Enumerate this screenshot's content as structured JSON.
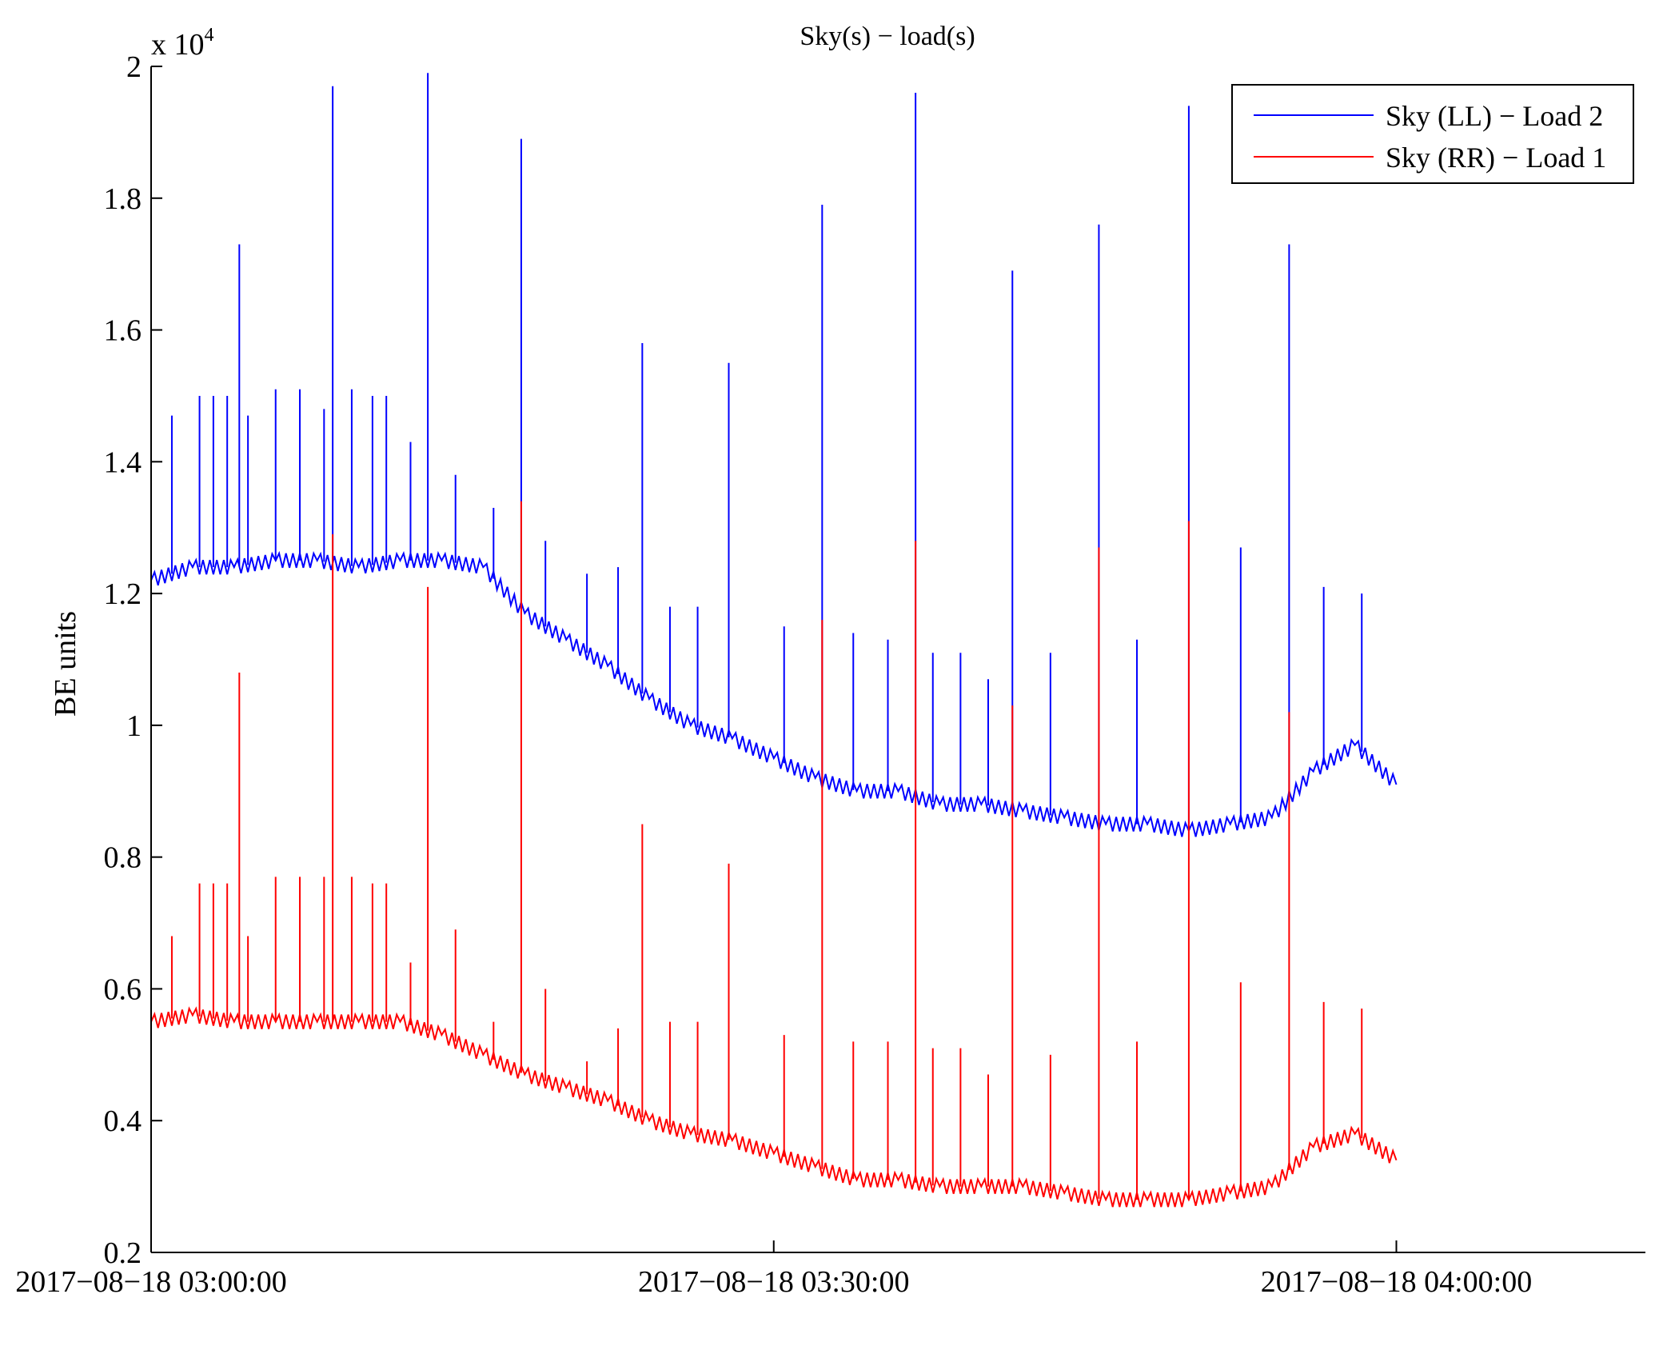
{
  "chart_data": {
    "type": "line",
    "title": "Sky(s) − load(s)",
    "xlabel": "",
    "ylabel": "BE units",
    "y_exponent_label": {
      "base": "x 10",
      "power": "4"
    },
    "ylim": [
      0.2,
      2.0
    ],
    "yticks": [
      0.2,
      0.4,
      0.6,
      0.8,
      1,
      1.2,
      1.4,
      1.6,
      1.8,
      2
    ],
    "ytick_labels": [
      "0.2",
      "0.4",
      "0.6",
      "0.8",
      "1",
      "1.2",
      "1.4",
      "1.6",
      "1.8",
      "2"
    ],
    "xlim": [
      "2017-08-18 03:00:00",
      "2017-08-18 04:12:00"
    ],
    "xticks": [
      "2017-08-18 03:00:00",
      "2017-08-18 03:30:00",
      "2017-08-18 04:00:00"
    ],
    "xtick_labels": [
      "2017−08−18 03:00:00",
      "2017−08−18 03:30:00",
      "2017−08−18 04:00:00"
    ],
    "grid": false,
    "legend_position": "top-right",
    "series": [
      {
        "name": "Sky (LL) − Load 2",
        "color": "#0000ff",
        "x": [
          "2017-08-18 03:00:00",
          "2017-08-18 03:02:00",
          "2017-08-18 03:04:00",
          "2017-08-18 03:06:00",
          "2017-08-18 03:08:00",
          "2017-08-18 03:10:00",
          "2017-08-18 03:12:00",
          "2017-08-18 03:14:00",
          "2017-08-18 03:16:00",
          "2017-08-18 03:18:00",
          "2017-08-18 03:20:00",
          "2017-08-18 03:22:00",
          "2017-08-18 03:24:00",
          "2017-08-18 03:26:00",
          "2017-08-18 03:28:00",
          "2017-08-18 03:30:00",
          "2017-08-18 03:32:00",
          "2017-08-18 03:34:00",
          "2017-08-18 03:36:00",
          "2017-08-18 03:38:00",
          "2017-08-18 03:40:00",
          "2017-08-18 03:42:00",
          "2017-08-18 03:44:00",
          "2017-08-18 03:46:00",
          "2017-08-18 03:48:00",
          "2017-08-18 03:50:00",
          "2017-08-18 03:52:00",
          "2017-08-18 03:54:00",
          "2017-08-18 03:56:00",
          "2017-08-18 03:58:00",
          "2017-08-18 04:00:00"
        ],
        "y": [
          1.22,
          1.24,
          1.24,
          1.25,
          1.25,
          1.24,
          1.25,
          1.25,
          1.24,
          1.17,
          1.13,
          1.09,
          1.04,
          1.0,
          0.98,
          0.95,
          0.92,
          0.9,
          0.9,
          0.88,
          0.88,
          0.87,
          0.86,
          0.85,
          0.85,
          0.84,
          0.85,
          0.86,
          0.93,
          0.97,
          0.91
        ],
        "spikes": [
          {
            "x": "2017-08-18 03:01:00",
            "y": 1.47
          },
          {
            "x": "2017-08-18 03:02:20",
            "y": 1.5
          },
          {
            "x": "2017-08-18 03:03:00",
            "y": 1.5
          },
          {
            "x": "2017-08-18 03:03:40",
            "y": 1.5
          },
          {
            "x": "2017-08-18 03:04:15",
            "y": 1.73
          },
          {
            "x": "2017-08-18 03:04:40",
            "y": 1.47
          },
          {
            "x": "2017-08-18 03:06:00",
            "y": 1.51
          },
          {
            "x": "2017-08-18 03:07:10",
            "y": 1.51
          },
          {
            "x": "2017-08-18 03:08:20",
            "y": 1.48
          },
          {
            "x": "2017-08-18 03:08:45",
            "y": 1.97
          },
          {
            "x": "2017-08-18 03:09:40",
            "y": 1.51
          },
          {
            "x": "2017-08-18 03:10:40",
            "y": 1.5
          },
          {
            "x": "2017-08-18 03:11:20",
            "y": 1.5
          },
          {
            "x": "2017-08-18 03:12:30",
            "y": 1.43
          },
          {
            "x": "2017-08-18 03:13:20",
            "y": 1.99
          },
          {
            "x": "2017-08-18 03:14:40",
            "y": 1.38
          },
          {
            "x": "2017-08-18 03:16:30",
            "y": 1.33
          },
          {
            "x": "2017-08-18 03:17:50",
            "y": 1.89
          },
          {
            "x": "2017-08-18 03:19:00",
            "y": 1.28
          },
          {
            "x": "2017-08-18 03:21:00",
            "y": 1.23
          },
          {
            "x": "2017-08-18 03:22:30",
            "y": 1.24
          },
          {
            "x": "2017-08-18 03:23:40",
            "y": 1.58
          },
          {
            "x": "2017-08-18 03:25:00",
            "y": 1.18
          },
          {
            "x": "2017-08-18 03:26:20",
            "y": 1.18
          },
          {
            "x": "2017-08-18 03:27:50",
            "y": 1.55
          },
          {
            "x": "2017-08-18 03:30:30",
            "y": 1.15
          },
          {
            "x": "2017-08-18 03:32:20",
            "y": 1.79
          },
          {
            "x": "2017-08-18 03:33:50",
            "y": 1.14
          },
          {
            "x": "2017-08-18 03:35:30",
            "y": 1.13
          },
          {
            "x": "2017-08-18 03:36:50",
            "y": 1.96
          },
          {
            "x": "2017-08-18 03:37:40",
            "y": 1.11
          },
          {
            "x": "2017-08-18 03:39:00",
            "y": 1.11
          },
          {
            "x": "2017-08-18 03:40:20",
            "y": 1.07
          },
          {
            "x": "2017-08-18 03:41:30",
            "y": 1.69
          },
          {
            "x": "2017-08-18 03:43:20",
            "y": 1.11
          },
          {
            "x": "2017-08-18 03:45:40",
            "y": 1.76
          },
          {
            "x": "2017-08-18 03:47:30",
            "y": 1.13
          },
          {
            "x": "2017-08-18 03:50:00",
            "y": 1.94
          },
          {
            "x": "2017-08-18 03:52:30",
            "y": 1.27
          },
          {
            "x": "2017-08-18 03:54:50",
            "y": 1.73
          },
          {
            "x": "2017-08-18 03:56:30",
            "y": 1.21
          },
          {
            "x": "2017-08-18 03:58:20",
            "y": 1.2
          }
        ]
      },
      {
        "name": "Sky (RR) − Load 1",
        "color": "#ff0000",
        "x": [
          "2017-08-18 03:00:00",
          "2017-08-18 03:02:00",
          "2017-08-18 03:04:00",
          "2017-08-18 03:06:00",
          "2017-08-18 03:08:00",
          "2017-08-18 03:10:00",
          "2017-08-18 03:12:00",
          "2017-08-18 03:14:00",
          "2017-08-18 03:16:00",
          "2017-08-18 03:18:00",
          "2017-08-18 03:20:00",
          "2017-08-18 03:22:00",
          "2017-08-18 03:24:00",
          "2017-08-18 03:26:00",
          "2017-08-18 03:28:00",
          "2017-08-18 03:30:00",
          "2017-08-18 03:32:00",
          "2017-08-18 03:34:00",
          "2017-08-18 03:36:00",
          "2017-08-18 03:38:00",
          "2017-08-18 03:40:00",
          "2017-08-18 03:42:00",
          "2017-08-18 03:44:00",
          "2017-08-18 03:46:00",
          "2017-08-18 03:48:00",
          "2017-08-18 03:50:00",
          "2017-08-18 03:52:00",
          "2017-08-18 03:54:00",
          "2017-08-18 03:56:00",
          "2017-08-18 03:58:00",
          "2017-08-18 04:00:00"
        ],
        "y": [
          0.55,
          0.56,
          0.55,
          0.55,
          0.55,
          0.55,
          0.55,
          0.53,
          0.5,
          0.47,
          0.45,
          0.43,
          0.4,
          0.38,
          0.37,
          0.35,
          0.33,
          0.31,
          0.31,
          0.3,
          0.3,
          0.3,
          0.29,
          0.28,
          0.28,
          0.28,
          0.29,
          0.3,
          0.36,
          0.38,
          0.34
        ],
        "spikes": [
          {
            "x": "2017-08-18 03:01:00",
            "y": 0.68
          },
          {
            "x": "2017-08-18 03:02:20",
            "y": 0.76
          },
          {
            "x": "2017-08-18 03:03:00",
            "y": 0.76
          },
          {
            "x": "2017-08-18 03:03:40",
            "y": 0.76
          },
          {
            "x": "2017-08-18 03:04:15",
            "y": 1.08
          },
          {
            "x": "2017-08-18 03:04:40",
            "y": 0.68
          },
          {
            "x": "2017-08-18 03:06:00",
            "y": 0.77
          },
          {
            "x": "2017-08-18 03:07:10",
            "y": 0.77
          },
          {
            "x": "2017-08-18 03:08:20",
            "y": 0.77
          },
          {
            "x": "2017-08-18 03:08:45",
            "y": 1.29
          },
          {
            "x": "2017-08-18 03:09:40",
            "y": 0.77
          },
          {
            "x": "2017-08-18 03:10:40",
            "y": 0.76
          },
          {
            "x": "2017-08-18 03:11:20",
            "y": 0.76
          },
          {
            "x": "2017-08-18 03:12:30",
            "y": 0.64
          },
          {
            "x": "2017-08-18 03:13:20",
            "y": 1.21
          },
          {
            "x": "2017-08-18 03:14:40",
            "y": 0.69
          },
          {
            "x": "2017-08-18 03:16:30",
            "y": 0.55
          },
          {
            "x": "2017-08-18 03:17:50",
            "y": 1.34
          },
          {
            "x": "2017-08-18 03:19:00",
            "y": 0.6
          },
          {
            "x": "2017-08-18 03:21:00",
            "y": 0.49
          },
          {
            "x": "2017-08-18 03:22:30",
            "y": 0.54
          },
          {
            "x": "2017-08-18 03:23:40",
            "y": 0.85
          },
          {
            "x": "2017-08-18 03:25:00",
            "y": 0.55
          },
          {
            "x": "2017-08-18 03:26:20",
            "y": 0.55
          },
          {
            "x": "2017-08-18 03:27:50",
            "y": 0.79
          },
          {
            "x": "2017-08-18 03:30:30",
            "y": 0.53
          },
          {
            "x": "2017-08-18 03:32:20",
            "y": 1.16
          },
          {
            "x": "2017-08-18 03:33:50",
            "y": 0.52
          },
          {
            "x": "2017-08-18 03:35:30",
            "y": 0.52
          },
          {
            "x": "2017-08-18 03:36:50",
            "y": 1.28
          },
          {
            "x": "2017-08-18 03:37:40",
            "y": 0.51
          },
          {
            "x": "2017-08-18 03:39:00",
            "y": 0.51
          },
          {
            "x": "2017-08-18 03:40:20",
            "y": 0.47
          },
          {
            "x": "2017-08-18 03:41:30",
            "y": 1.03
          },
          {
            "x": "2017-08-18 03:43:20",
            "y": 0.5
          },
          {
            "x": "2017-08-18 03:45:40",
            "y": 1.27
          },
          {
            "x": "2017-08-18 03:47:30",
            "y": 0.52
          },
          {
            "x": "2017-08-18 03:50:00",
            "y": 1.31
          },
          {
            "x": "2017-08-18 03:52:30",
            "y": 0.61
          },
          {
            "x": "2017-08-18 03:54:50",
            "y": 1.02
          },
          {
            "x": "2017-08-18 03:56:30",
            "y": 0.58
          },
          {
            "x": "2017-08-18 03:58:20",
            "y": 0.57
          }
        ]
      }
    ]
  }
}
